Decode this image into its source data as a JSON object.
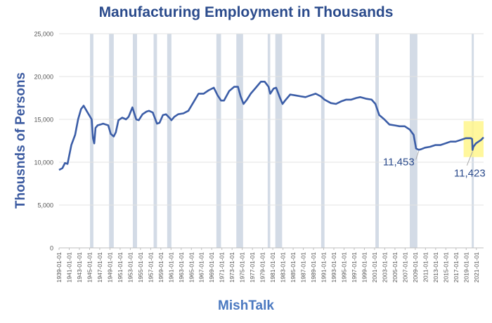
{
  "chart_data": {
    "type": "line",
    "title": "Manufacturing Employment in Thousands",
    "xlabel": "MishTalk",
    "ylabel": "Thousnds of Persons",
    "ylim": [
      0,
      25000
    ],
    "yticks": [
      "0",
      "5,000",
      "10,000",
      "15,000",
      "20,000",
      "25,000"
    ],
    "yticks_values": [
      0,
      5000,
      10000,
      15000,
      20000,
      25000
    ],
    "xlim": [
      "1939-01-01",
      "2022-06-01"
    ],
    "xticks": [
      "1939-01-01",
      "1941-01-01",
      "1943-01-01",
      "1945-01-01",
      "1947-01-01",
      "1949-01-01",
      "1951-01-01",
      "1953-01-01",
      "1955-01-01",
      "1957-01-01",
      "1959-01-01",
      "1961-01-01",
      "1963-01-01",
      "1965-01-01",
      "1967-01-01",
      "1969-01-01",
      "1971-01-01",
      "1973-01-01",
      "1975-01-01",
      "1977-01-01",
      "1979-01-01",
      "1981-01-01",
      "1983-01-01",
      "1985-01-01",
      "1987-01-01",
      "1989-01-01",
      "1991-01-01",
      "1993-01-01",
      "1995-01-01",
      "1997-01-01",
      "1999-01-01",
      "2001-01-01",
      "2003-01-01",
      "2005-01-01",
      "2007-01-01",
      "2009-01-01",
      "2011-01-01",
      "2013-01-01",
      "2015-01-01",
      "2017-01-01",
      "2019-01-01",
      "2021-01-01"
    ],
    "grid": true,
    "line_color": "#3b5da7",
    "recession_color": "#d3dbe6",
    "highlight_color": "#fff68c",
    "recessions": [
      [
        "1945-02-01",
        "1945-10-01"
      ],
      [
        "1948-11-01",
        "1949-10-01"
      ],
      [
        "1953-07-01",
        "1954-05-01"
      ],
      [
        "1957-08-01",
        "1958-04-01"
      ],
      [
        "1960-04-01",
        "1961-02-01"
      ],
      [
        "1969-12-01",
        "1970-11-01"
      ],
      [
        "1973-11-01",
        "1975-03-01"
      ],
      [
        "1980-01-01",
        "1980-07-01"
      ],
      [
        "1981-07-01",
        "1982-11-01"
      ],
      [
        "1990-07-01",
        "1991-03-01"
      ],
      [
        "2001-03-01",
        "2001-11-01"
      ],
      [
        "2007-12-01",
        "2009-06-01"
      ],
      [
        "2020-02-01",
        "2020-04-01"
      ]
    ],
    "highlight_box": {
      "x": [
        "2018-07-01",
        "2022-06-01"
      ],
      "y": [
        10600,
        14800
      ]
    },
    "series": [
      {
        "x": [
          "1939-01-01",
          "1939-09-01",
          "1940-03-01",
          "1940-09-01",
          "1941-06-01",
          "1942-03-01",
          "1942-10-01",
          "1943-05-01",
          "1943-11-01",
          "1944-06-01",
          "1944-12-01",
          "1945-06-01",
          "1945-09-01",
          "1945-12-01",
          "1946-03-01",
          "1946-08-01",
          "1947-03-01",
          "1947-09-01",
          "1948-03-01",
          "1948-09-01",
          "1949-03-01",
          "1949-10-01",
          "1950-03-01",
          "1950-09-01",
          "1951-06-01",
          "1952-03-01",
          "1952-09-01",
          "1953-06-01",
          "1954-03-01",
          "1954-09-01",
          "1955-06-01",
          "1956-03-01",
          "1956-09-01",
          "1957-06-01",
          "1958-04-01",
          "1958-10-01",
          "1959-06-01",
          "1960-01-01",
          "1960-09-01",
          "1961-02-01",
          "1961-09-01",
          "1962-06-01",
          "1963-06-01",
          "1964-06-01",
          "1965-06-01",
          "1966-06-01",
          "1967-06-01",
          "1968-06-01",
          "1969-06-01",
          "1970-03-01",
          "1970-11-01",
          "1971-06-01",
          "1972-06-01",
          "1973-06-01",
          "1974-03-01",
          "1974-09-01",
          "1975-04-01",
          "1975-12-01",
          "1976-09-01",
          "1977-09-01",
          "1978-09-01",
          "1979-06-01",
          "1980-03-01",
          "1980-07-01",
          "1981-03-01",
          "1981-09-01",
          "1982-06-01",
          "1982-12-01",
          "1983-06-01",
          "1984-06-01",
          "1985-06-01",
          "1986-06-01",
          "1987-06-01",
          "1988-06-01",
          "1989-06-01",
          "1990-06-01",
          "1991-03-01",
          "1992-06-01",
          "1993-06-01",
          "1994-06-01",
          "1995-06-01",
          "1996-06-01",
          "1997-06-01",
          "1998-03-01",
          "1999-06-01",
          "2000-06-01",
          "2001-03-01",
          "2001-12-01",
          "2002-12-01",
          "2003-12-01",
          "2004-12-01",
          "2005-12-01",
          "2006-12-01",
          "2007-12-01",
          "2008-09-01",
          "2009-03-01",
          "2009-09-01",
          "2010-02-01",
          "2010-12-01",
          "2011-12-01",
          "2012-12-01",
          "2013-12-01",
          "2014-12-01",
          "2015-12-01",
          "2016-12-01",
          "2017-12-01",
          "2018-12-01",
          "2019-12-01",
          "2020-03-01",
          "2020-04-01",
          "2020-06-01",
          "2020-12-01",
          "2021-06-01",
          "2021-12-01",
          "2022-06-01"
        ],
        "y": [
          9100,
          9300,
          9900,
          9800,
          12000,
          13200,
          15000,
          16200,
          16600,
          16000,
          15500,
          15000,
          12800,
          12200,
          14000,
          14300,
          14400,
          14500,
          14400,
          14300,
          13300,
          13000,
          13500,
          14900,
          15200,
          15000,
          15300,
          16400,
          15000,
          14900,
          15600,
          15900,
          16000,
          15800,
          14500,
          14600,
          15500,
          15600,
          15200,
          14900,
          15300,
          15600,
          15700,
          16000,
          17000,
          18000,
          18000,
          18400,
          18700,
          17800,
          17200,
          17200,
          18300,
          18800,
          18800,
          17700,
          16800,
          17300,
          18000,
          18700,
          19400,
          19400,
          18800,
          18000,
          18600,
          18700,
          17500,
          16800,
          17200,
          17900,
          17800,
          17700,
          17600,
          17800,
          18000,
          17700,
          17300,
          16900,
          16800,
          17100,
          17300,
          17300,
          17500,
          17600,
          17400,
          17300,
          16800,
          15500,
          15000,
          14400,
          14300,
          14200,
          14200,
          13800,
          13200,
          11600,
          11453,
          11500,
          11700,
          11800,
          12000,
          12000,
          12200,
          12400,
          12400,
          12600,
          12800,
          12800,
          12700,
          11423,
          11800,
          12200,
          12400,
          12600,
          12900
        ]
      }
    ],
    "annotations": [
      {
        "text": "11,453",
        "x": "2009-09-01",
        "y": 11453
      },
      {
        "text": "11,423",
        "x": "2020-04-01",
        "y": 11423
      }
    ]
  }
}
